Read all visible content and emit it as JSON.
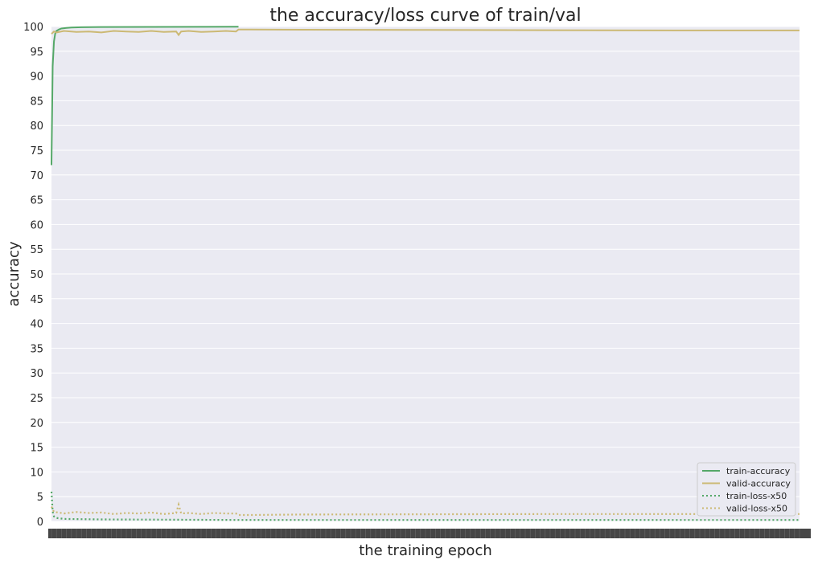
{
  "chart_data": {
    "type": "line",
    "title": "the accuracy/loss curve of train/val",
    "xlabel": "the training epoch",
    "ylabel": "accuracy",
    "ylim": [
      0,
      100
    ],
    "y_ticks": [
      0,
      5,
      10,
      15,
      20,
      25,
      30,
      35,
      40,
      45,
      50,
      55,
      60,
      65,
      70,
      75,
      80,
      85,
      90,
      95,
      100
    ],
    "x_tick_labels_note": "overlapping epoch tick labels along the x-axis",
    "xlim": [
      0,
      300
    ],
    "grid": true,
    "background_color": "#eaeaf2",
    "legend_placement": "lower-right",
    "series": [
      {
        "name": "train-accuracy",
        "color": "#55a868",
        "style": "solid",
        "x": [
          0,
          0.5,
          1,
          1.5,
          2,
          3,
          4,
          6,
          8,
          12,
          20,
          40,
          60,
          75
        ],
        "y": [
          72,
          92,
          97,
          98.6,
          99.1,
          99.4,
          99.6,
          99.7,
          99.8,
          99.85,
          99.9,
          99.92,
          99.94,
          99.95
        ]
      },
      {
        "name": "valid-accuracy",
        "color": "#ccb974",
        "style": "solid",
        "x": [
          0,
          1,
          2,
          5,
          10,
          15,
          20,
          25,
          30,
          35,
          40,
          45,
          50,
          51,
          52,
          55,
          60,
          65,
          70,
          74,
          75,
          80,
          100,
          150,
          200,
          250,
          300
        ],
        "y": [
          98.5,
          99.0,
          98.8,
          99.1,
          98.9,
          99.0,
          98.8,
          99.1,
          99.0,
          98.9,
          99.1,
          98.9,
          99.0,
          98.3,
          99.0,
          99.1,
          98.9,
          99.0,
          99.1,
          99.0,
          99.4,
          99.4,
          99.35,
          99.3,
          99.25,
          99.2,
          99.2
        ]
      },
      {
        "name": "train-loss-x50",
        "color": "#55a868",
        "style": "dotted",
        "x": [
          0,
          0.5,
          1,
          2,
          5,
          20,
          75,
          100,
          300
        ],
        "y": [
          6.0,
          2.0,
          1.0,
          0.7,
          0.5,
          0.4,
          0.3,
          0.3,
          0.3
        ]
      },
      {
        "name": "valid-loss-x50",
        "color": "#ccb974",
        "style": "dotted",
        "x": [
          0,
          1,
          3,
          5,
          10,
          15,
          20,
          25,
          30,
          35,
          40,
          45,
          50,
          51,
          52,
          55,
          60,
          65,
          70,
          74,
          75,
          80,
          100,
          150,
          200,
          250,
          300
        ],
        "y": [
          3.0,
          1.9,
          1.8,
          1.6,
          1.9,
          1.7,
          1.8,
          1.5,
          1.7,
          1.6,
          1.8,
          1.5,
          1.7,
          3.4,
          1.6,
          1.7,
          1.5,
          1.7,
          1.6,
          1.6,
          1.3,
          1.3,
          1.4,
          1.45,
          1.5,
          1.5,
          1.5
        ]
      }
    ]
  }
}
